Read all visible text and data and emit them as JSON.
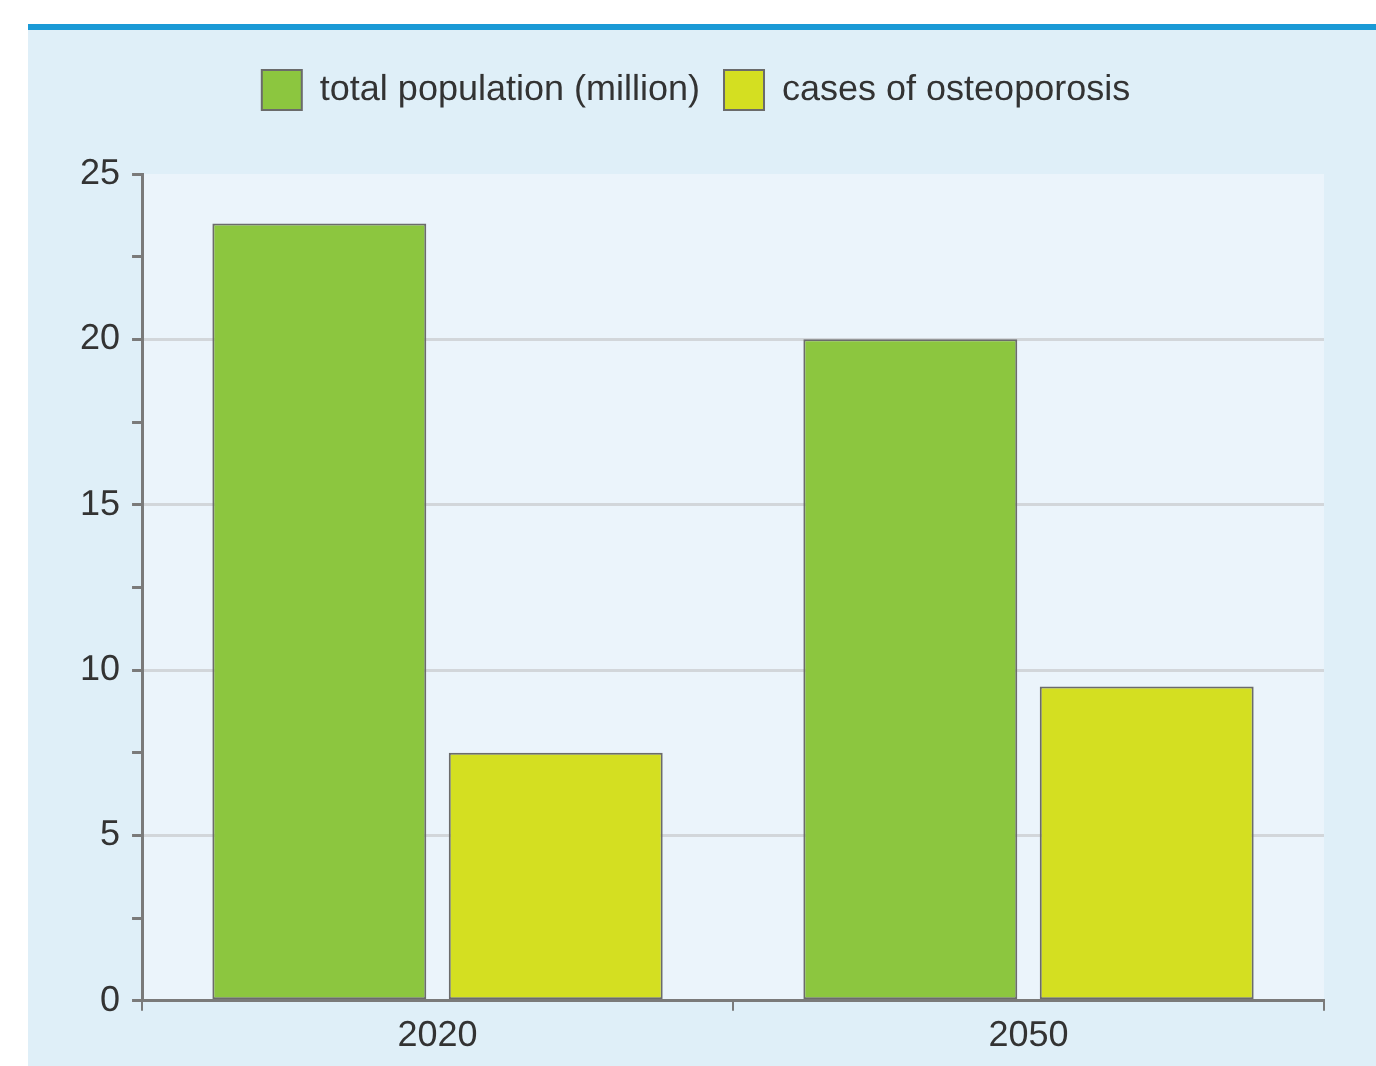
{
  "chart_data": {
    "type": "bar",
    "categories": [
      "2020",
      "2050"
    ],
    "series": [
      {
        "name": "total population (million)",
        "color": "#8cc63f",
        "values": [
          23.5,
          20
        ]
      },
      {
        "name": "cases of osteoporosis",
        "color": "#d4df21",
        "values": [
          7.5,
          9.5
        ]
      }
    ],
    "ylim": [
      0,
      25
    ],
    "yticks": [
      0,
      {
        "value": 2.5,
        "label": null
      },
      5,
      {
        "value": 7.5,
        "label": null
      },
      10,
      {
        "value": 12.5,
        "label": null
      },
      15,
      {
        "value": 17.5,
        "label": null
      },
      20,
      {
        "value": 22.5,
        "label": null
      },
      25
    ],
    "grid": "y",
    "legend": "top"
  }
}
